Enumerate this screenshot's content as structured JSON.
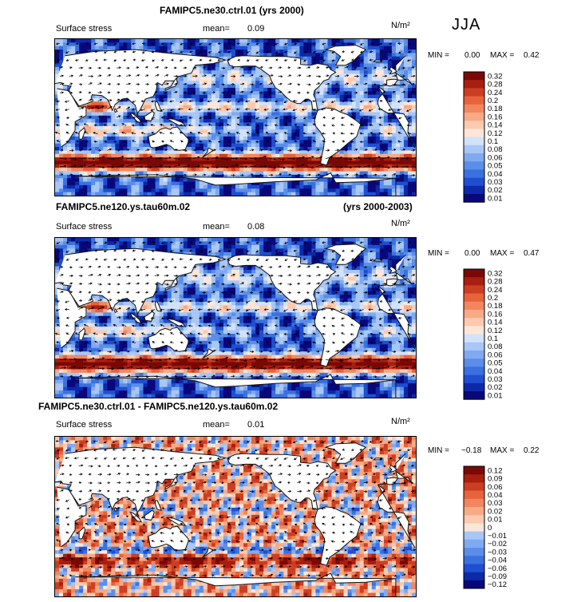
{
  "season": "JJA",
  "colors": {
    "colorbar": [
      "#08087a",
      "#0c2aa8",
      "#1f4fd0",
      "#3a70e0",
      "#5a8ee8",
      "#80aaf0",
      "#a8c6f6",
      "#d2e2fb",
      "#fde6d8",
      "#fbcab0",
      "#f7aa86",
      "#f2875e",
      "#e6633c",
      "#cc3e22",
      "#a81e10",
      "#7a0906"
    ],
    "land": "#ffffff",
    "coast": "#111111"
  },
  "chart_data": [
    {
      "type": "heatmap",
      "title": "FAMIPC5.ne30.ctrl.01 (yrs 2000)",
      "subtitle": "",
      "variable": "Surface stress",
      "units": "N/m²",
      "mean_label": "mean=",
      "mean": "0.09",
      "min_label": "MIN =",
      "min": "0.00",
      "max_label": "MAX =",
      "max": "0.42",
      "colorbar_levels": [
        "0.32",
        "0.28",
        "0.24",
        "0.2",
        "0.18",
        "0.16",
        "0.14",
        "0.12",
        "0.1",
        "0.08",
        "0.06",
        "0.05",
        "0.04",
        "0.03",
        "0.02",
        "0.01"
      ]
    },
    {
      "type": "heatmap",
      "title": "FAMIPC5.ne120.ys.tau60m.02",
      "subtitle": "(yrs 2000-2003)",
      "variable": "Surface stress",
      "units": "N/m²",
      "mean_label": "mean=",
      "mean": "0.08",
      "min_label": "MIN =",
      "min": "0.00",
      "max_label": "MAX =",
      "max": "0.47",
      "colorbar_levels": [
        "0.32",
        "0.28",
        "0.24",
        "0.2",
        "0.18",
        "0.16",
        "0.14",
        "0.12",
        "0.1",
        "0.08",
        "0.06",
        "0.05",
        "0.04",
        "0.03",
        "0.02",
        "0.01"
      ]
    },
    {
      "type": "heatmap",
      "title": "FAMIPC5.ne30.ctrl.01 - FAMIPC5.ne120.ys.tau60m.02",
      "subtitle": "",
      "variable": "Surface stress",
      "units": "N/m²",
      "mean_label": "mean=",
      "mean": "0.01",
      "min_label": "MIN =",
      "min": "−0.18",
      "max_label": "MAX =",
      "max": "0.22",
      "colorbar_levels": [
        "0.12",
        "0.09",
        "0.06",
        "0.04",
        "0.03",
        "0.02",
        "0.01",
        "0",
        "−0.01",
        "−0.02",
        "−0.03",
        "−0.04",
        "−0.06",
        "−0.09",
        "−0.12"
      ]
    }
  ]
}
